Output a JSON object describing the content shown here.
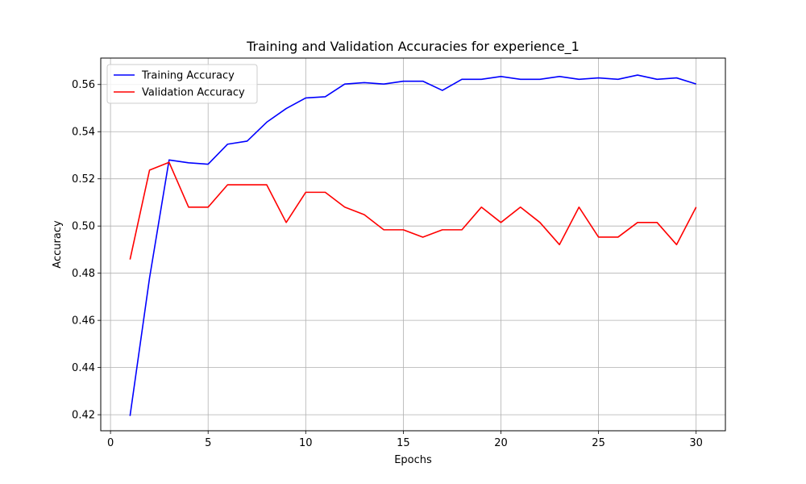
{
  "chart_data": {
    "type": "line",
    "title": "Training and Validation Accuracies for experience_1",
    "xlabel": "Epochs",
    "ylabel": "Accuracy",
    "xlim": [
      -0.5,
      31.5
    ],
    "ylim": [
      0.4132,
      0.5712
    ],
    "xticks": [
      0,
      5,
      10,
      15,
      20,
      25,
      30
    ],
    "yticks": [
      0.42,
      0.44,
      0.46,
      0.48,
      0.5,
      0.52,
      0.54,
      0.56
    ],
    "grid": true,
    "legend_position": "top-left",
    "x": [
      1,
      2,
      3,
      4,
      5,
      6,
      7,
      8,
      9,
      10,
      11,
      12,
      13,
      14,
      15,
      16,
      17,
      18,
      19,
      20,
      21,
      22,
      23,
      24,
      25,
      26,
      27,
      28,
      29,
      30
    ],
    "series": [
      {
        "name": "Training Accuracy",
        "color": "#0000ff",
        "values": [
          0.4195,
          0.478,
          0.528,
          0.5268,
          0.5262,
          0.5347,
          0.536,
          0.544,
          0.5498,
          0.5543,
          0.5548,
          0.5602,
          0.5608,
          0.5602,
          0.5614,
          0.5614,
          0.5575,
          0.5622,
          0.5622,
          0.5634,
          0.5622,
          0.5622,
          0.5634,
          0.5622,
          0.5628,
          0.5622,
          0.564,
          0.5622,
          0.5628,
          0.5602
        ]
      },
      {
        "name": "Validation Accuracy",
        "color": "#ff0000",
        "values": [
          0.4858,
          0.5237,
          0.527,
          0.508,
          0.508,
          0.5175,
          0.5175,
          0.5175,
          0.5015,
          0.5143,
          0.5143,
          0.508,
          0.5048,
          0.4984,
          0.4984,
          0.4953,
          0.4984,
          0.4984,
          0.508,
          0.5015,
          0.508,
          0.5015,
          0.4921,
          0.508,
          0.4953,
          0.4953,
          0.5015,
          0.5015,
          0.4921,
          0.508
        ]
      }
    ]
  }
}
